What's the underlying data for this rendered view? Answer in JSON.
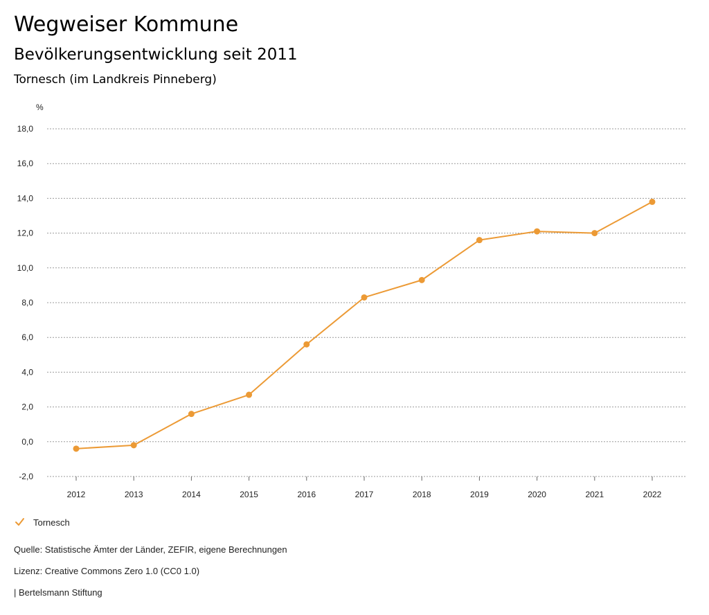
{
  "header": {
    "title": "Wegweiser Kommune",
    "subtitle": "Bevölkerungsentwicklung seit 2011",
    "region": "Tornesch (im Landkreis Pinneberg)"
  },
  "chart_data": {
    "type": "line",
    "title": "Bevölkerungsentwicklung seit 2011",
    "xlabel": "",
    "ylabel": "%",
    "categories": [
      "2012",
      "2013",
      "2014",
      "2015",
      "2016",
      "2017",
      "2018",
      "2019",
      "2020",
      "2021",
      "2022"
    ],
    "series": [
      {
        "name": "Tornesch",
        "color": "#ec9a35",
        "values": [
          -0.4,
          -0.2,
          1.6,
          2.7,
          5.6,
          8.3,
          9.3,
          11.6,
          12.1,
          12.0,
          13.8
        ]
      }
    ],
    "ylim": [
      -2.0,
      18.0
    ],
    "yticks": [
      "-2,0",
      "0,0",
      "2,0",
      "4,0",
      "6,0",
      "8,0",
      "10,0",
      "12,0",
      "14,0",
      "16,0",
      "18,0"
    ],
    "grid": true,
    "legend_position": "bottom-left"
  },
  "legend": {
    "label": "Tornesch",
    "icon": "check-icon"
  },
  "footer": {
    "source": "Quelle: Statistische Ämter der Länder, ZEFIR, eigene Berechnungen",
    "license": "Lizenz: Creative Commons Zero 1.0 (CC0 1.0)",
    "publisher": "| Bertelsmann Stiftung"
  }
}
